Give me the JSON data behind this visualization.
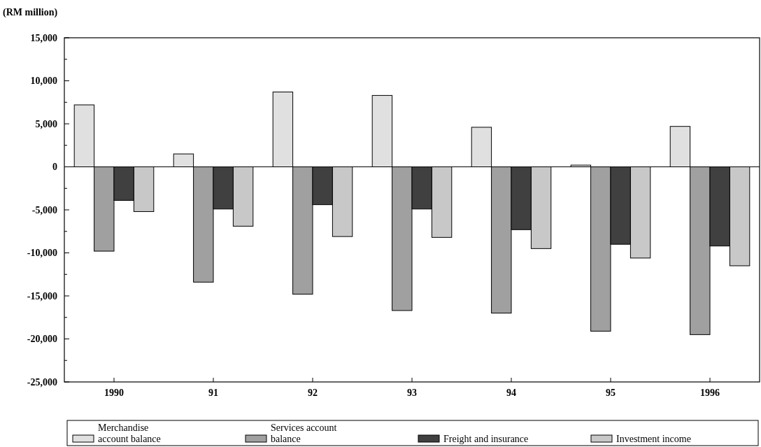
{
  "chart_data": {
    "type": "bar",
    "ylabel": "(RM million)",
    "categories": [
      "1990",
      "91",
      "92",
      "93",
      "94",
      "95",
      "1996"
    ],
    "series": [
      {
        "name": "Merchandise account balance",
        "color": "#e0e0e0",
        "values": [
          7200,
          1500,
          8700,
          8300,
          4600,
          200,
          4700
        ]
      },
      {
        "name": "Services account balance",
        "color": "#a0a0a0",
        "values": [
          -9800,
          -13400,
          -14800,
          -16700,
          -17000,
          -19100,
          -19500
        ]
      },
      {
        "name": "Freight and insurance",
        "color": "#404040",
        "values": [
          -3900,
          -4900,
          -4400,
          -4900,
          -7300,
          -9000,
          -9200
        ]
      },
      {
        "name": "Investment income",
        "color": "#c8c8c8",
        "values": [
          -5200,
          -6900,
          -8100,
          -8200,
          -9500,
          -10600,
          -11500
        ]
      }
    ],
    "ylim": [
      -25000,
      15000
    ],
    "yticks": [
      {
        "value": -25000,
        "label": "-25,000"
      },
      {
        "value": -22500,
        "label": null
      },
      {
        "value": -20000,
        "label": "-20,000"
      },
      {
        "value": -17500,
        "label": null
      },
      {
        "value": -15000,
        "label": "-15,000"
      },
      {
        "value": -12500,
        "label": null
      },
      {
        "value": -10000,
        "label": "-10,000"
      },
      {
        "value": -7500,
        "label": null
      },
      {
        "value": -5000,
        "label": "-5,000"
      },
      {
        "value": -2500,
        "label": null
      },
      0,
      {
        "value": 2500,
        "label": null
      },
      {
        "value": 5000,
        "label": "5,000"
      },
      {
        "value": 7500,
        "label": null
      },
      {
        "value": 10000,
        "label": "10,000"
      },
      {
        "value": 12500,
        "label": null
      },
      {
        "value": 15000,
        "label": "15,000"
      }
    ],
    "legend": "bottom"
  }
}
